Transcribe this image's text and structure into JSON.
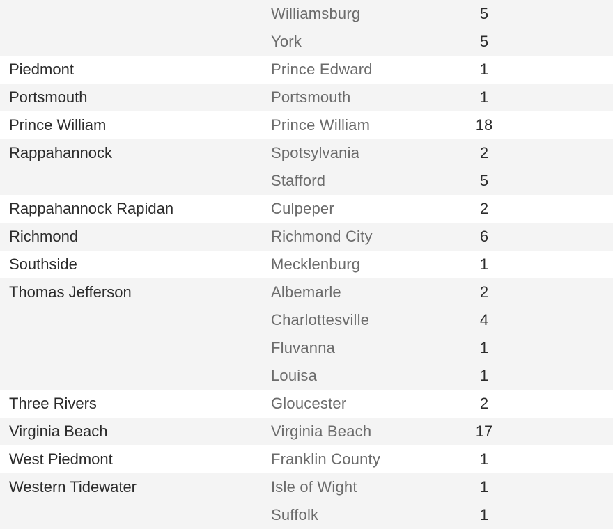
{
  "groups": [
    {
      "district": "",
      "rows": [
        {
          "locality": "Williamsburg",
          "count": "5"
        },
        {
          "locality": "York",
          "count": "5"
        }
      ]
    },
    {
      "district": "Piedmont",
      "rows": [
        {
          "locality": "Prince Edward",
          "count": "1"
        }
      ]
    },
    {
      "district": "Portsmouth",
      "rows": [
        {
          "locality": "Portsmouth",
          "count": "1"
        }
      ]
    },
    {
      "district": "Prince William",
      "rows": [
        {
          "locality": "Prince William",
          "count": "18"
        }
      ]
    },
    {
      "district": "Rappahannock",
      "rows": [
        {
          "locality": "Spotsylvania",
          "count": "2"
        },
        {
          "locality": "Stafford",
          "count": "5"
        }
      ]
    },
    {
      "district": "Rappahannock Rapidan",
      "rows": [
        {
          "locality": "Culpeper",
          "count": "2"
        }
      ]
    },
    {
      "district": "Richmond",
      "rows": [
        {
          "locality": "Richmond City",
          "count": "6"
        }
      ]
    },
    {
      "district": "Southside",
      "rows": [
        {
          "locality": "Mecklenburg",
          "count": "1"
        }
      ]
    },
    {
      "district": "Thomas Jefferson",
      "rows": [
        {
          "locality": "Albemarle",
          "count": "2"
        },
        {
          "locality": "Charlottesville",
          "count": "4"
        },
        {
          "locality": "Fluvanna",
          "count": "1"
        },
        {
          "locality": "Louisa",
          "count": "1"
        }
      ]
    },
    {
      "district": "Three Rivers",
      "rows": [
        {
          "locality": "Gloucester",
          "count": "2"
        }
      ]
    },
    {
      "district": "Virginia Beach",
      "rows": [
        {
          "locality": "Virginia Beach",
          "count": "17"
        }
      ]
    },
    {
      "district": "West Piedmont",
      "rows": [
        {
          "locality": "Franklin County",
          "count": "1"
        }
      ]
    },
    {
      "district": "Western Tidewater",
      "rows": [
        {
          "locality": "Isle of Wight",
          "count": "1"
        },
        {
          "locality": "Suffolk",
          "count": "1"
        }
      ]
    }
  ]
}
